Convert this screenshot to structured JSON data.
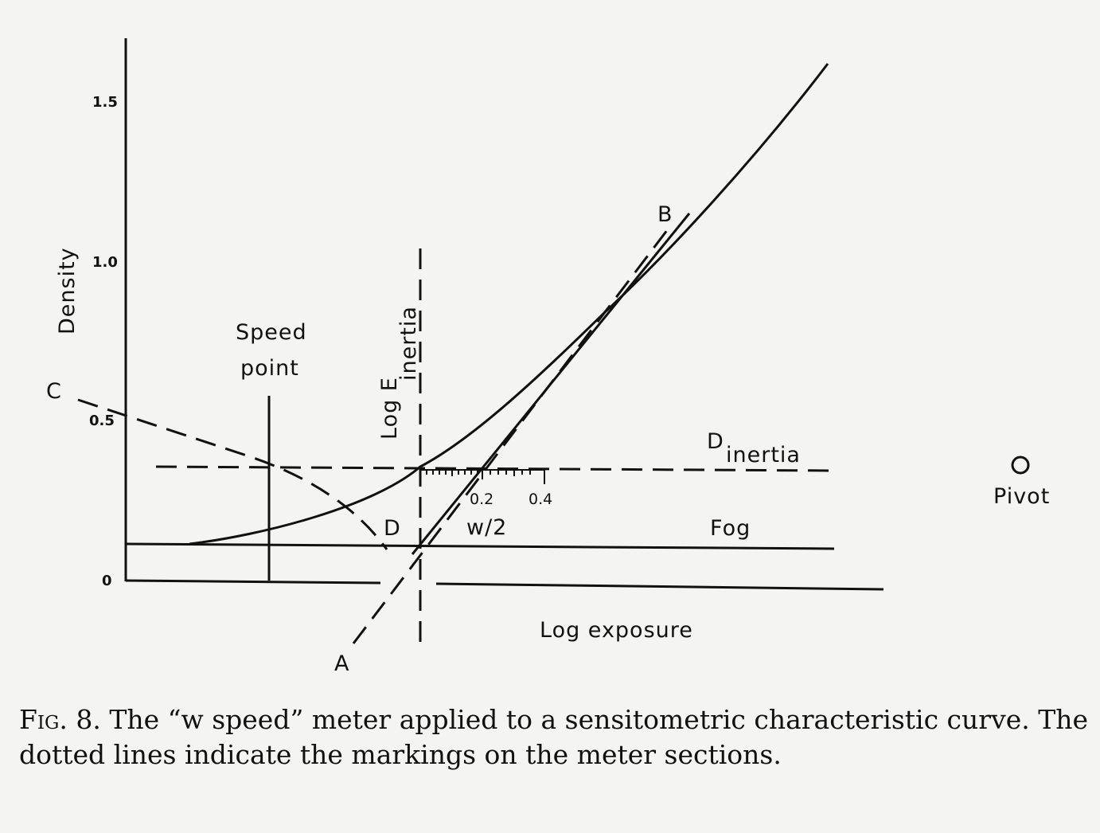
{
  "figure": {
    "y_axis_label": "Density",
    "y_ticks": [
      "1.5",
      "1.0",
      "0.5",
      "0"
    ],
    "x_axis_label": "Log exposure",
    "speed_point_label": [
      "Speed",
      "point"
    ],
    "log_e_inertia_label": {
      "main": "Log E",
      "sub": "inertia"
    },
    "d_inertia_label": {
      "main": "D",
      "sub": "inertia"
    },
    "fog_label": "Fog",
    "scale_ticks": [
      "0.2",
      "0.4"
    ],
    "w_half_label": "w/2",
    "pivot_label": "Pivot",
    "point_labels": {
      "A": "A",
      "B": "B",
      "C": "C",
      "D": "D"
    }
  },
  "caption": {
    "label": "Fig. 8.",
    "text": "The “w speed” meter applied to a sensitometric characteristic curve. The dotted lines indicate the markings on the meter sections."
  }
}
